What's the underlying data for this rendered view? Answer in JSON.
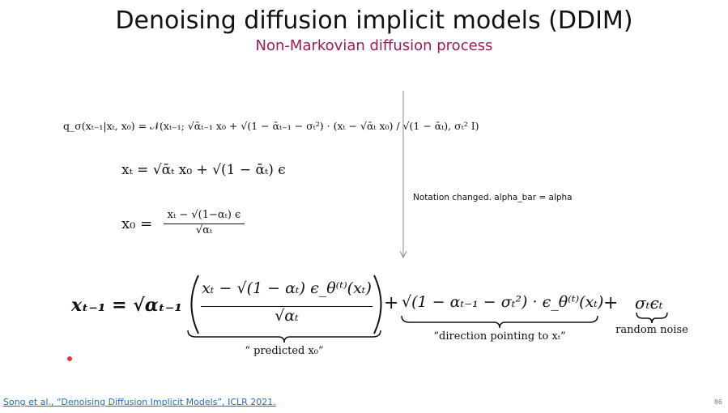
{
  "header": {
    "title": "Denoising diffusion implicit models (DDIM)",
    "subtitle": "Non-Markovian diffusion process"
  },
  "equations": {
    "posterior": "q_σ(xₜ₋₁|xₜ, x₀) = 𝒩(xₜ₋₁; √ᾱₜ₋₁ x₀ + √(1 − ᾱₜ₋₁ − σₜ²) · (xₜ − √ᾱₜ x₀) / √(1 − ᾱₜ), σₜ² I)",
    "forward": "xₜ = √ᾱₜ x₀ + √(1 − ᾱₜ) ϵ",
    "x0": {
      "lhs": "x₀ =",
      "numerator": "xₜ − √(1−αₜ) ϵ",
      "denominator": "√αₜ"
    },
    "update": {
      "lhs": "xₜ₋₁ = √αₜ₋₁",
      "numerator": "xₜ − √(1 − αₜ) ϵ_θ⁽ᵗ⁾(xₜ)",
      "denominator": "√αₜ",
      "plus_1": "+",
      "direction": "√(1 − αₜ₋₁ − σₜ²) · ϵ_θ⁽ᵗ⁾(xₜ)",
      "plus_2": "+",
      "noise": "σₜϵₜ",
      "label_predicted": "“ predicted x₀”",
      "label_direction": "“direction pointing to xₜ”",
      "label_noise": "random noise"
    }
  },
  "note": "Notation changed. alpha_bar = alpha",
  "citation": "Song et al., “Denoising Diffusion Implicit Models”, ICLR 2021.",
  "page_number": "86"
}
